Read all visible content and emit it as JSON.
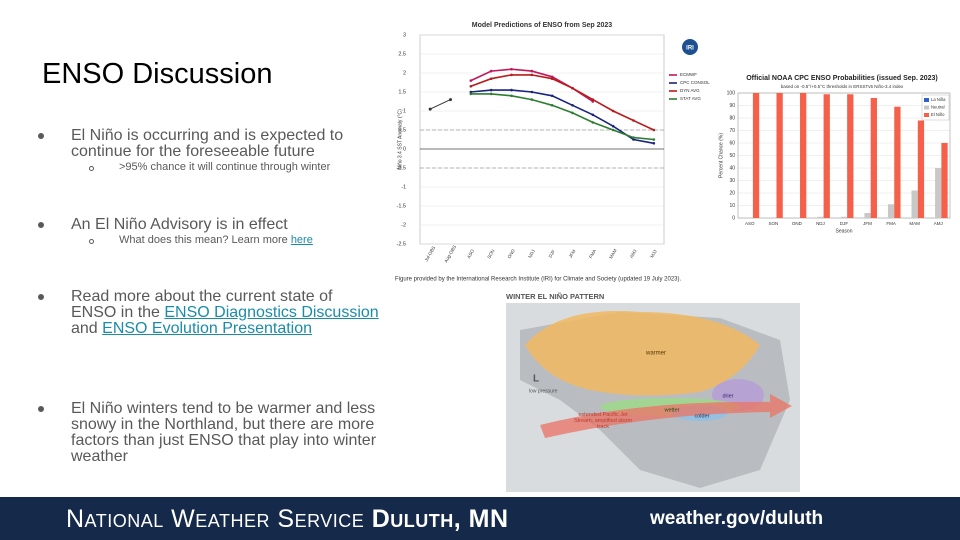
{
  "slide": {
    "title": "ENSO Discussion",
    "bullets": [
      {
        "text": "El Niño is occurring and is expected to continue for the foreseeable future",
        "sub": ">95% chance it will continue through winter"
      },
      {
        "text": "An El Niño Advisory is in effect",
        "sub": "What does this mean? Learn more ",
        "sub_link": "here"
      },
      {
        "parts": [
          "Read more about the current state of ENSO in the ",
          "ENSO Diagnostics Discussion",
          " and ",
          "ENSO Evolution Presentation"
        ]
      },
      {
        "text": "El Niño winters tend to be warmer and less snowy in the Northland, but there are more factors than just ENSO that play into winter weather"
      }
    ]
  },
  "iri_logo": "IRI",
  "chart_data": [
    {
      "type": "line",
      "title": "Model Predictions of ENSO from Sep 2023",
      "y_label": "Niño 3.4 SST Anomaly (°C)",
      "categories": [
        "Jul-OBS",
        "Aug-OBS",
        "ASO",
        "SON",
        "OND",
        "NDJ",
        "DJF",
        "JFM",
        "FMA",
        "MAM",
        "AMJ",
        "MJJ"
      ],
      "ylim": [
        -2.5,
        3
      ],
      "yticks": [
        -2.5,
        -2,
        -1.5,
        -1,
        -0.5,
        0,
        0.5,
        1,
        1.5,
        2,
        2.5,
        3
      ],
      "reference_lines": [
        0.5,
        -0.5
      ],
      "observed": {
        "color": "#333333",
        "values": [
          1.05,
          1.3,
          null,
          null,
          null,
          null,
          null,
          null,
          null,
          null,
          null,
          null
        ]
      },
      "series": [
        {
          "name": "ECMWF",
          "color": "#c2185b",
          "values": [
            null,
            null,
            1.8,
            2.05,
            2.1,
            2.05,
            1.9,
            1.6,
            1.25,
            null,
            null,
            null
          ]
        },
        {
          "name": "CPC CONSOL",
          "color": "#1a237e",
          "values": [
            null,
            null,
            1.5,
            1.55,
            1.55,
            1.5,
            1.4,
            1.15,
            0.9,
            0.6,
            0.25,
            0.15
          ]
        },
        {
          "name": "DYN AVG",
          "color": "#b71c1c",
          "values": [
            null,
            null,
            1.65,
            1.85,
            1.95,
            1.95,
            1.85,
            1.6,
            1.3,
            1,
            0.75,
            0.5
          ]
        },
        {
          "name": "STAT AVG",
          "color": "#2e7d32",
          "values": [
            null,
            null,
            1.45,
            1.45,
            1.4,
            1.3,
            1.15,
            0.95,
            0.7,
            0.5,
            0.3,
            0.25
          ]
        }
      ]
    },
    {
      "type": "bar",
      "title": "Official NOAA CPC ENSO Probabilities (issued Sep. 2023)",
      "subtitle": "based on -0.5°/+0.5°C thresholds in ERSSTv5 Niño-3.4 index",
      "y_label": "Percent Chance (%)",
      "x_label": "Season",
      "categories": [
        "ASO",
        "SON",
        "OND",
        "NDJ",
        "DJF",
        "JFM",
        "FMA",
        "MAM",
        "AMJ"
      ],
      "ylim": [
        0,
        100
      ],
      "yticks": [
        0,
        10,
        20,
        30,
        40,
        50,
        60,
        70,
        80,
        90,
        100
      ],
      "grid": true,
      "series": [
        {
          "name": "La Niña",
          "color": "#2f5fd0",
          "values": [
            0,
            0,
            0,
            0,
            0,
            0,
            0,
            0,
            0
          ]
        },
        {
          "name": "Neutral",
          "color": "#c8c8c8",
          "values": [
            0,
            0,
            0,
            1,
            1,
            4,
            11,
            22,
            40
          ]
        },
        {
          "name": "El Niño",
          "color": "#f4604a",
          "values": [
            100,
            100,
            100,
            99,
            99,
            96,
            89,
            78,
            60
          ]
        }
      ]
    }
  ],
  "figure_caption": "Figure provided by the International Research Institute (IRI) for Climate and Society (updated 19 July 2023).",
  "map": {
    "title": "WINTER EL NIÑO PATTERN",
    "warmer": "warmer",
    "drier": "drier",
    "wetter": "wetter",
    "colder": "colder",
    "low_symbol": "L",
    "low_label": "low pressure",
    "jet_label": "extended Pacific Jet Stream, amplified storm track"
  },
  "footer": {
    "agency": "National Weather Service",
    "office": "Duluth, MN",
    "url": "weather.gov/duluth"
  }
}
